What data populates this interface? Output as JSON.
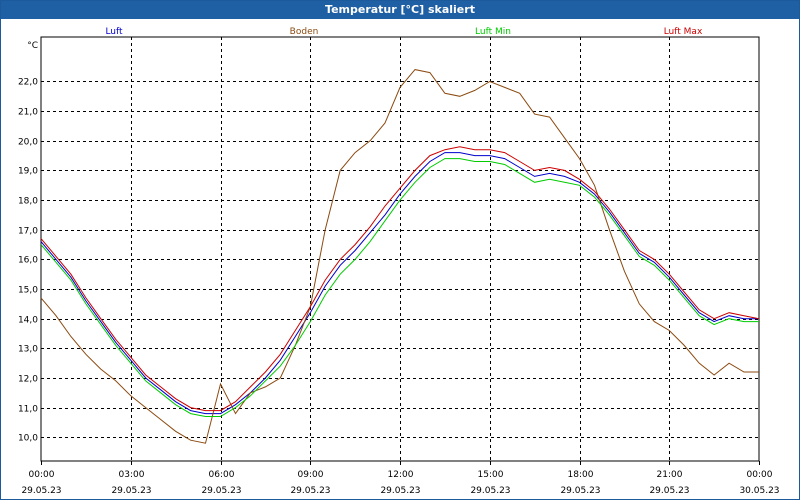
{
  "window": {
    "title": "Temperatur [°C] skaliert"
  },
  "chart_data": {
    "type": "line",
    "title": "Temperatur [°C] skaliert",
    "ylabel": "°C",
    "xlabel": "",
    "grid": true,
    "legend_placement": "top",
    "ylim": [
      9.2,
      23.5
    ],
    "yticks": [
      "10,0",
      "11,0",
      "12,0",
      "13,0",
      "14,0",
      "15,0",
      "16,0",
      "17,0",
      "18,0",
      "19,0",
      "20,0",
      "21,0",
      "22,0"
    ],
    "xticks": [
      {
        "time": "00:00",
        "date": "29.05.23"
      },
      {
        "time": "03:00",
        "date": "29.05.23"
      },
      {
        "time": "06:00",
        "date": "29.05.23"
      },
      {
        "time": "09:00",
        "date": "29.05.23"
      },
      {
        "time": "12:00",
        "date": "29.05.23"
      },
      {
        "time": "15:00",
        "date": "29.05.23"
      },
      {
        "time": "18:00",
        "date": "29.05.23"
      },
      {
        "time": "21:00",
        "date": "29.05.23"
      },
      {
        "time": "00:00",
        "date": "30.05.23"
      }
    ],
    "x_hours": [
      0,
      0.5,
      1,
      1.5,
      2,
      2.5,
      3,
      3.5,
      4,
      4.5,
      5,
      5.5,
      6,
      6.5,
      7,
      7.5,
      8,
      8.5,
      9,
      9.5,
      10,
      10.5,
      11,
      11.5,
      12,
      12.5,
      13,
      13.5,
      14,
      14.5,
      15,
      15.5,
      16,
      16.5,
      17,
      17.5,
      18,
      18.5,
      19,
      19.5,
      20,
      20.5,
      21,
      21.5,
      22,
      22.5,
      23,
      23.5,
      24
    ],
    "series": [
      {
        "name": "Luft",
        "color": "#0000cc",
        "values": [
          16.6,
          16.0,
          15.4,
          14.6,
          13.9,
          13.2,
          12.6,
          12.0,
          11.6,
          11.2,
          10.9,
          10.8,
          10.8,
          11.1,
          11.5,
          12.0,
          12.6,
          13.4,
          14.2,
          15.1,
          15.8,
          16.3,
          16.9,
          17.5,
          18.2,
          18.8,
          19.3,
          19.6,
          19.6,
          19.5,
          19.5,
          19.4,
          19.1,
          18.8,
          18.9,
          18.8,
          18.6,
          18.2,
          17.6,
          16.9,
          16.2,
          15.9,
          15.4,
          14.8,
          14.2,
          13.9,
          14.1,
          14.0,
          14.0
        ]
      },
      {
        "name": "Boden",
        "color": "#8b4a10",
        "values": [
          14.7,
          14.1,
          13.4,
          12.8,
          12.3,
          11.9,
          11.4,
          11.0,
          10.6,
          10.2,
          9.9,
          9.8,
          11.8,
          10.8,
          11.5,
          11.7,
          12.0,
          13.1,
          14.4,
          17.0,
          19.0,
          19.6,
          20.0,
          20.6,
          21.8,
          22.4,
          22.3,
          21.6,
          21.5,
          21.7,
          22.0,
          21.8,
          21.6,
          20.9,
          20.8,
          20.1,
          19.4,
          18.5,
          17.0,
          15.6,
          14.5,
          13.9,
          13.6,
          13.1,
          12.5,
          12.1,
          12.5,
          12.2,
          12.2
        ]
      },
      {
        "name": "Luft Min",
        "color": "#00cc00",
        "values": [
          16.5,
          15.9,
          15.3,
          14.5,
          13.8,
          13.1,
          12.5,
          11.9,
          11.5,
          11.1,
          10.8,
          10.7,
          10.7,
          11.0,
          11.4,
          11.9,
          12.4,
          13.1,
          13.9,
          14.8,
          15.5,
          16.0,
          16.6,
          17.3,
          18.0,
          18.6,
          19.1,
          19.4,
          19.4,
          19.3,
          19.3,
          19.2,
          18.9,
          18.6,
          18.7,
          18.6,
          18.5,
          18.1,
          17.5,
          16.8,
          16.1,
          15.8,
          15.3,
          14.7,
          14.1,
          13.8,
          14.0,
          13.9,
          13.9
        ]
      },
      {
        "name": "Luft Max",
        "color": "#cc0000",
        "values": [
          16.7,
          16.1,
          15.5,
          14.7,
          14.0,
          13.3,
          12.7,
          12.1,
          11.7,
          11.3,
          11.0,
          10.9,
          10.9,
          11.2,
          11.7,
          12.2,
          12.8,
          13.6,
          14.4,
          15.3,
          16.0,
          16.5,
          17.1,
          17.8,
          18.4,
          19.0,
          19.5,
          19.7,
          19.8,
          19.7,
          19.7,
          19.6,
          19.3,
          19.0,
          19.1,
          19.0,
          18.7,
          18.3,
          17.7,
          17.0,
          16.3,
          16.0,
          15.5,
          14.9,
          14.3,
          14.0,
          14.2,
          14.1,
          14.0
        ]
      }
    ]
  }
}
